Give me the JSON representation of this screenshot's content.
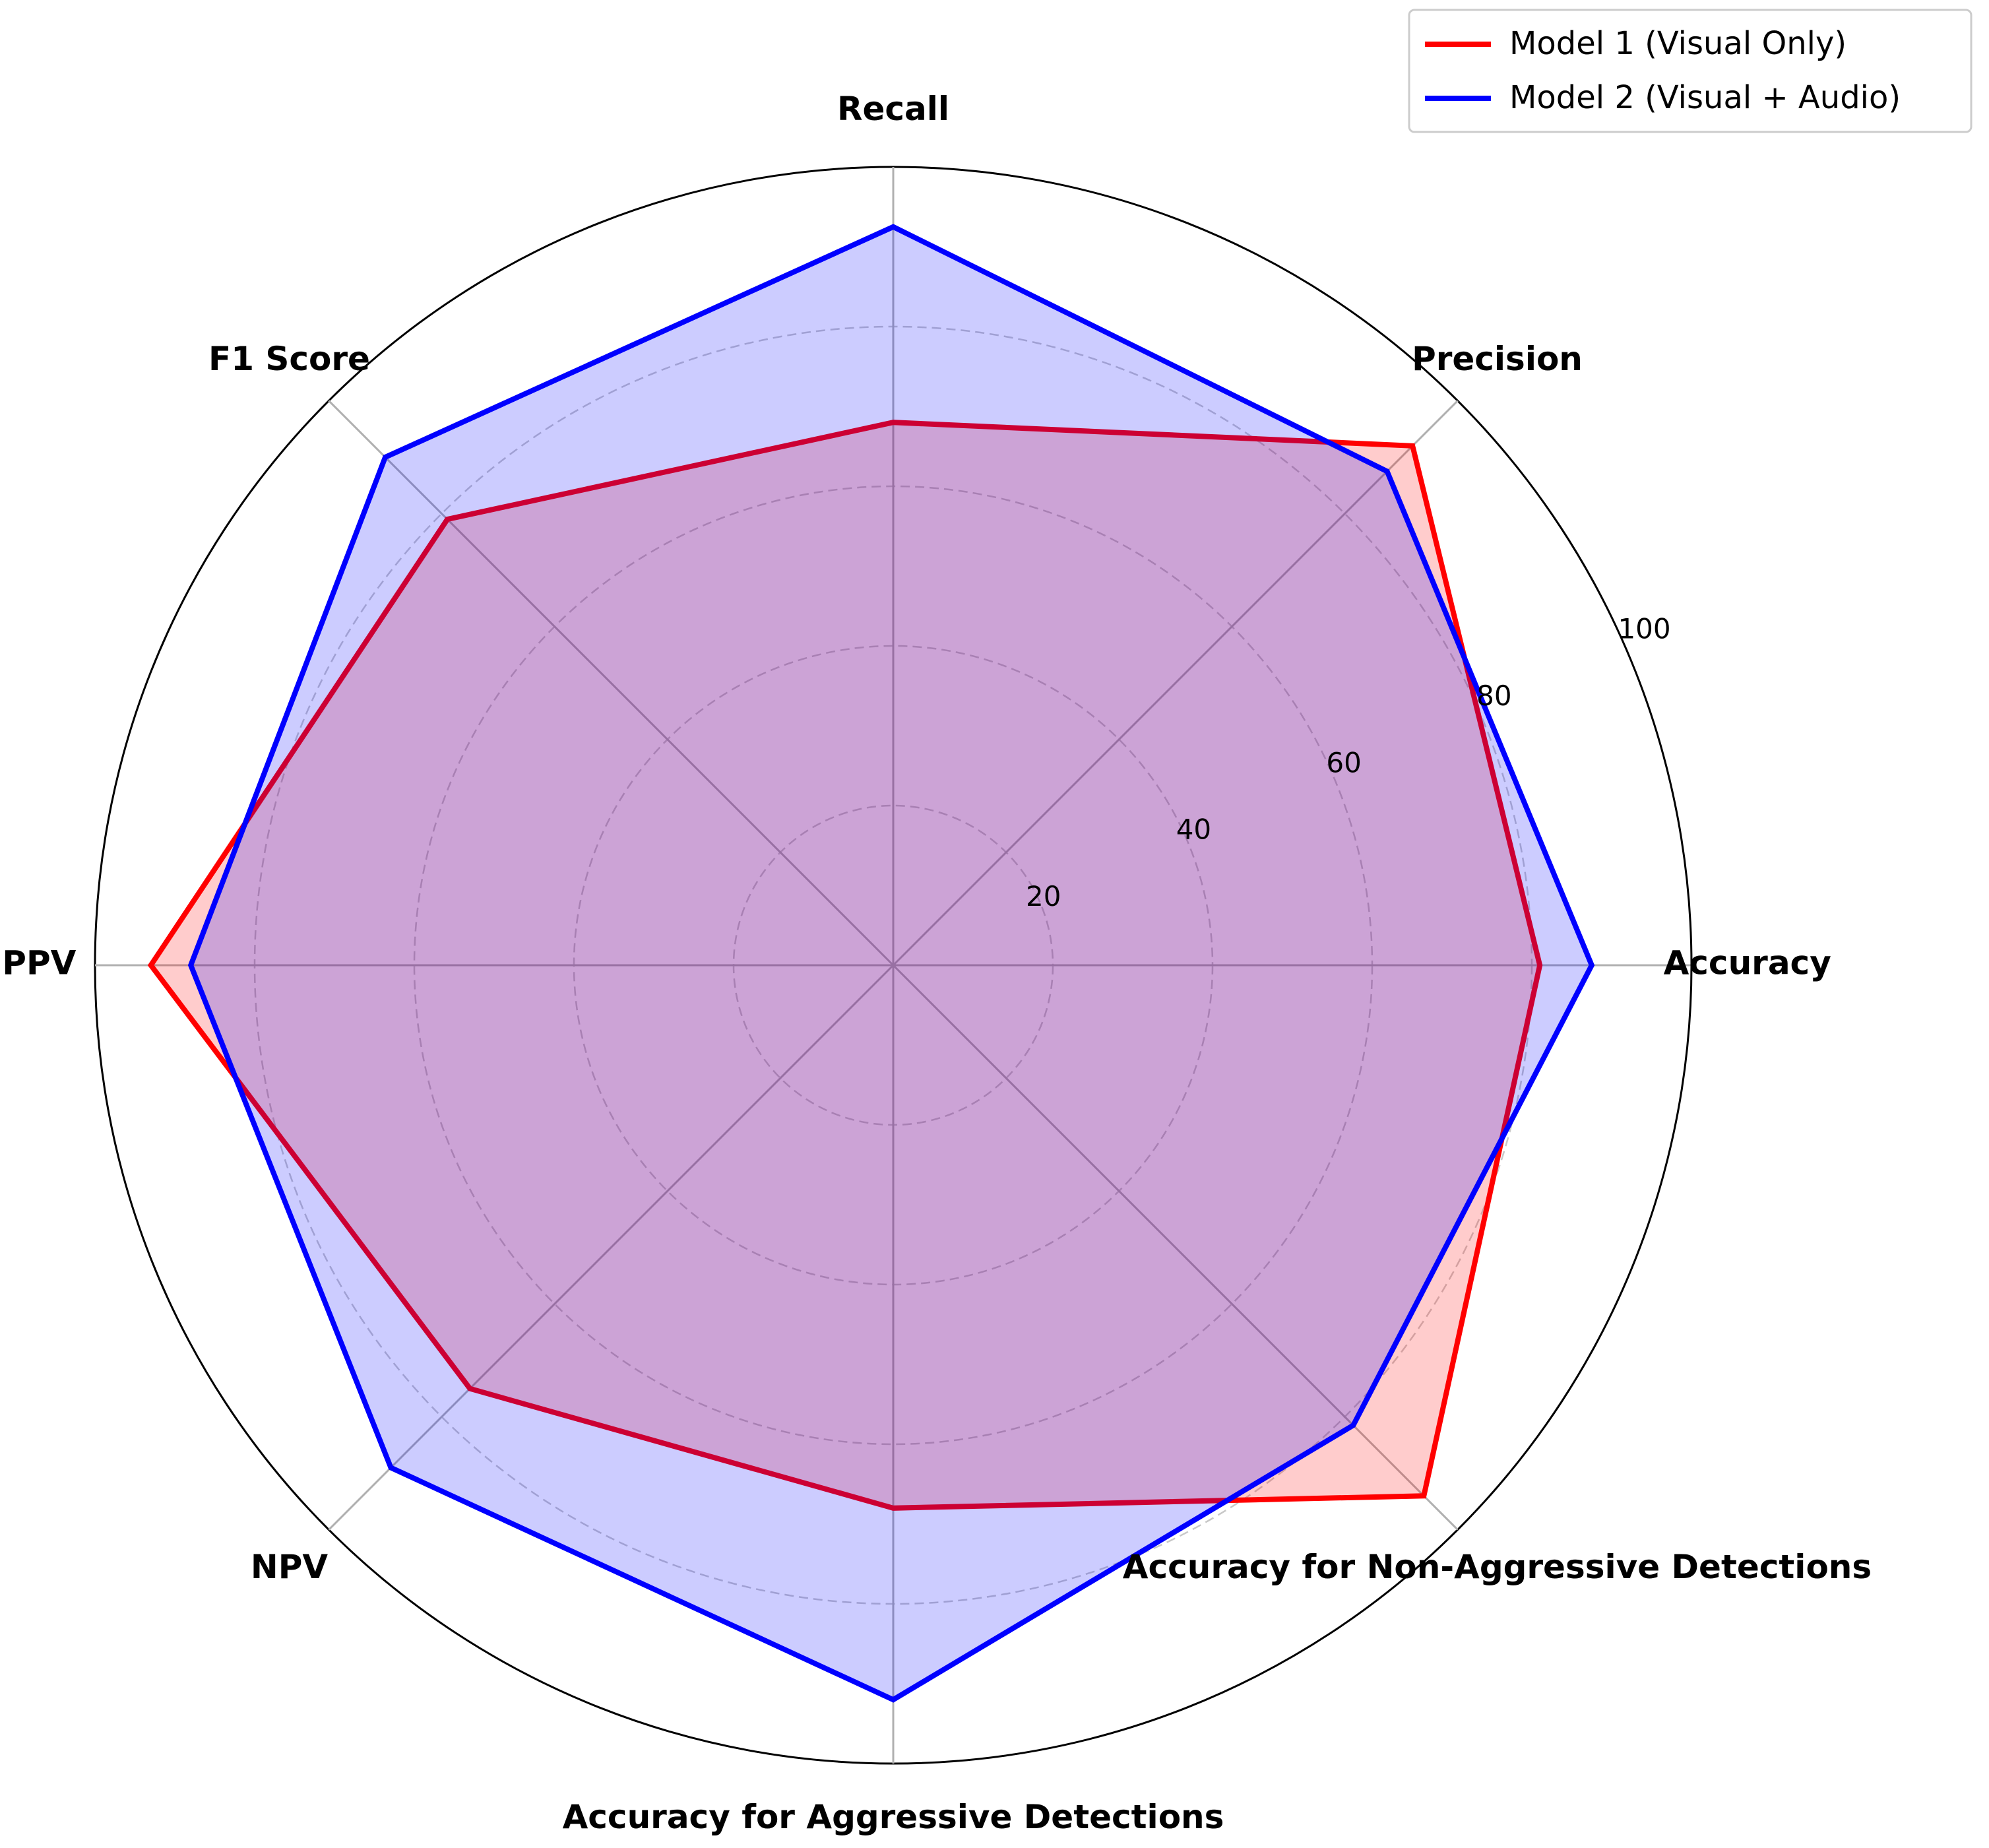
{
  "chart_data": {
    "type": "radar",
    "categories": [
      "Accuracy",
      "Precision",
      "Recall",
      "F1 Score",
      "PPV",
      "NPV",
      "Accuracy for Aggressive Detections",
      "Accuracy for Non-Aggressive Detections"
    ],
    "series": [
      {
        "name": "Model 1 (Visual Only)",
        "color": "#ff0000",
        "values": [
          81,
          92,
          68,
          79,
          93,
          75,
          68,
          94
        ]
      },
      {
        "name": "Model 2 (Visual + Audio)",
        "color": "#0000ff",
        "values": [
          87.5,
          87.5,
          92.5,
          90,
          88,
          89,
          92,
          81.5
        ]
      }
    ],
    "ylim": [
      0,
      100
    ],
    "yticks": [
      20,
      40,
      60,
      80,
      100
    ],
    "grid": true,
    "legend": "upper right"
  }
}
